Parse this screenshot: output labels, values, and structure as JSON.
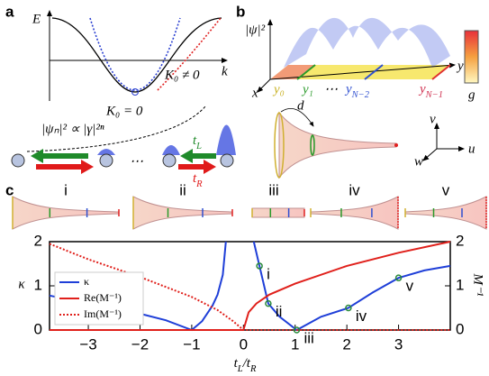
{
  "panel_labels": [
    "a",
    "b",
    "c"
  ],
  "panel_a": {
    "energy_axis": "E",
    "momentum_axis": "k",
    "min_label": "K₀ = 0",
    "shifted_label": "K₀ ≠ 0",
    "amplitude_law": "|ψₙ|² ∝ |γ|²ⁿ",
    "ellipsis": "⋯",
    "hop_left": [
      {
        "t": "t"
      },
      {
        "sub": "L"
      }
    ],
    "hop_right": [
      {
        "t": "t"
      },
      {
        "sub": "R"
      }
    ]
  },
  "panel_b": {
    "density_axis": "|ψ|²",
    "y_axis": "y",
    "x_axis": "x",
    "sites": [
      "y₀",
      "y₁",
      "⋯",
      [
        {
          "t": "y"
        },
        {
          "sub": "N−2"
        }
      ],
      [
        {
          "t": "y"
        },
        {
          "sub": "N−1"
        }
      ]
    ],
    "colorbar_label": "g",
    "distance": "d",
    "directions": [
      "v",
      "u",
      "w"
    ]
  },
  "horn_labels": [
    "i",
    "ii",
    "iii",
    "iv",
    "v"
  ],
  "chart_data": {
    "type": "line",
    "x_label": [
      {
        "t": "t"
      },
      {
        "sub": "L"
      },
      {
        "t": "/t"
      },
      {
        "sub": "R"
      }
    ],
    "y_label": "κ",
    "y2_label": "M⁻¹",
    "xlim": [
      -3.75,
      4
    ],
    "xticks": [
      {
        "value": -3,
        "label": "−3"
      },
      {
        "value": -2,
        "label": "−2"
      },
      {
        "value": -1,
        "label": "−1"
      },
      0,
      1,
      2,
      3
    ],
    "ylim": [
      0,
      2
    ],
    "yticks": [
      0,
      1,
      2
    ],
    "y2lim": [
      0,
      2
    ],
    "y2ticks": [
      0,
      1,
      2
    ],
    "legend": "lower left",
    "series": [
      {
        "name": "κ",
        "color": "#1f3fd8",
        "style": "solid",
        "axis": "y",
        "x": [
          -3.75,
          -3,
          -2,
          -1.5,
          -1,
          -0.8,
          -0.6,
          -0.5,
          -0.4,
          -0.34,
          0,
          0.2,
          0.31,
          0.48,
          0.7,
          1.03,
          1.5,
          2.03,
          2.5,
          3,
          3.5,
          4
        ],
        "values": [
          0.78,
          0.6,
          0.37,
          0.22,
          0,
          0.2,
          0.55,
          0.8,
          1.25,
          2,
          null,
          2,
          1.45,
          0.6,
          0.3,
          0,
          0.3,
          0.5,
          0.85,
          1.18,
          1.35,
          1.45
        ]
      },
      {
        "name": "Re(M⁻¹)",
        "color": "#e0201b",
        "style": "solid",
        "axis": "y2",
        "x": [
          -3.75,
          0,
          0.1,
          0.25,
          0.5,
          1,
          2,
          3,
          4
        ],
        "values": [
          0,
          0,
          0.4,
          0.6,
          0.8,
          1.05,
          1.45,
          1.75,
          2
        ]
      },
      {
        "name": "Im(M⁻¹)",
        "color": "#e0201b",
        "style": "dotted",
        "axis": "y2",
        "x": [
          -3.75,
          -3,
          -2,
          -1,
          -0.5,
          -0.2,
          0,
          4
        ],
        "values": [
          1.95,
          1.6,
          1.2,
          0.75,
          0.45,
          0.2,
          0,
          0
        ]
      }
    ],
    "points": {
      "color": "#2a8a3a",
      "x": [
        0.31,
        0.48,
        1.03,
        2.03,
        3
      ],
      "values": [
        1.45,
        0.6,
        0,
        0.5,
        1.18
      ],
      "labels": [
        "i",
        "ii",
        "iii",
        "iv",
        "v"
      ]
    }
  }
}
